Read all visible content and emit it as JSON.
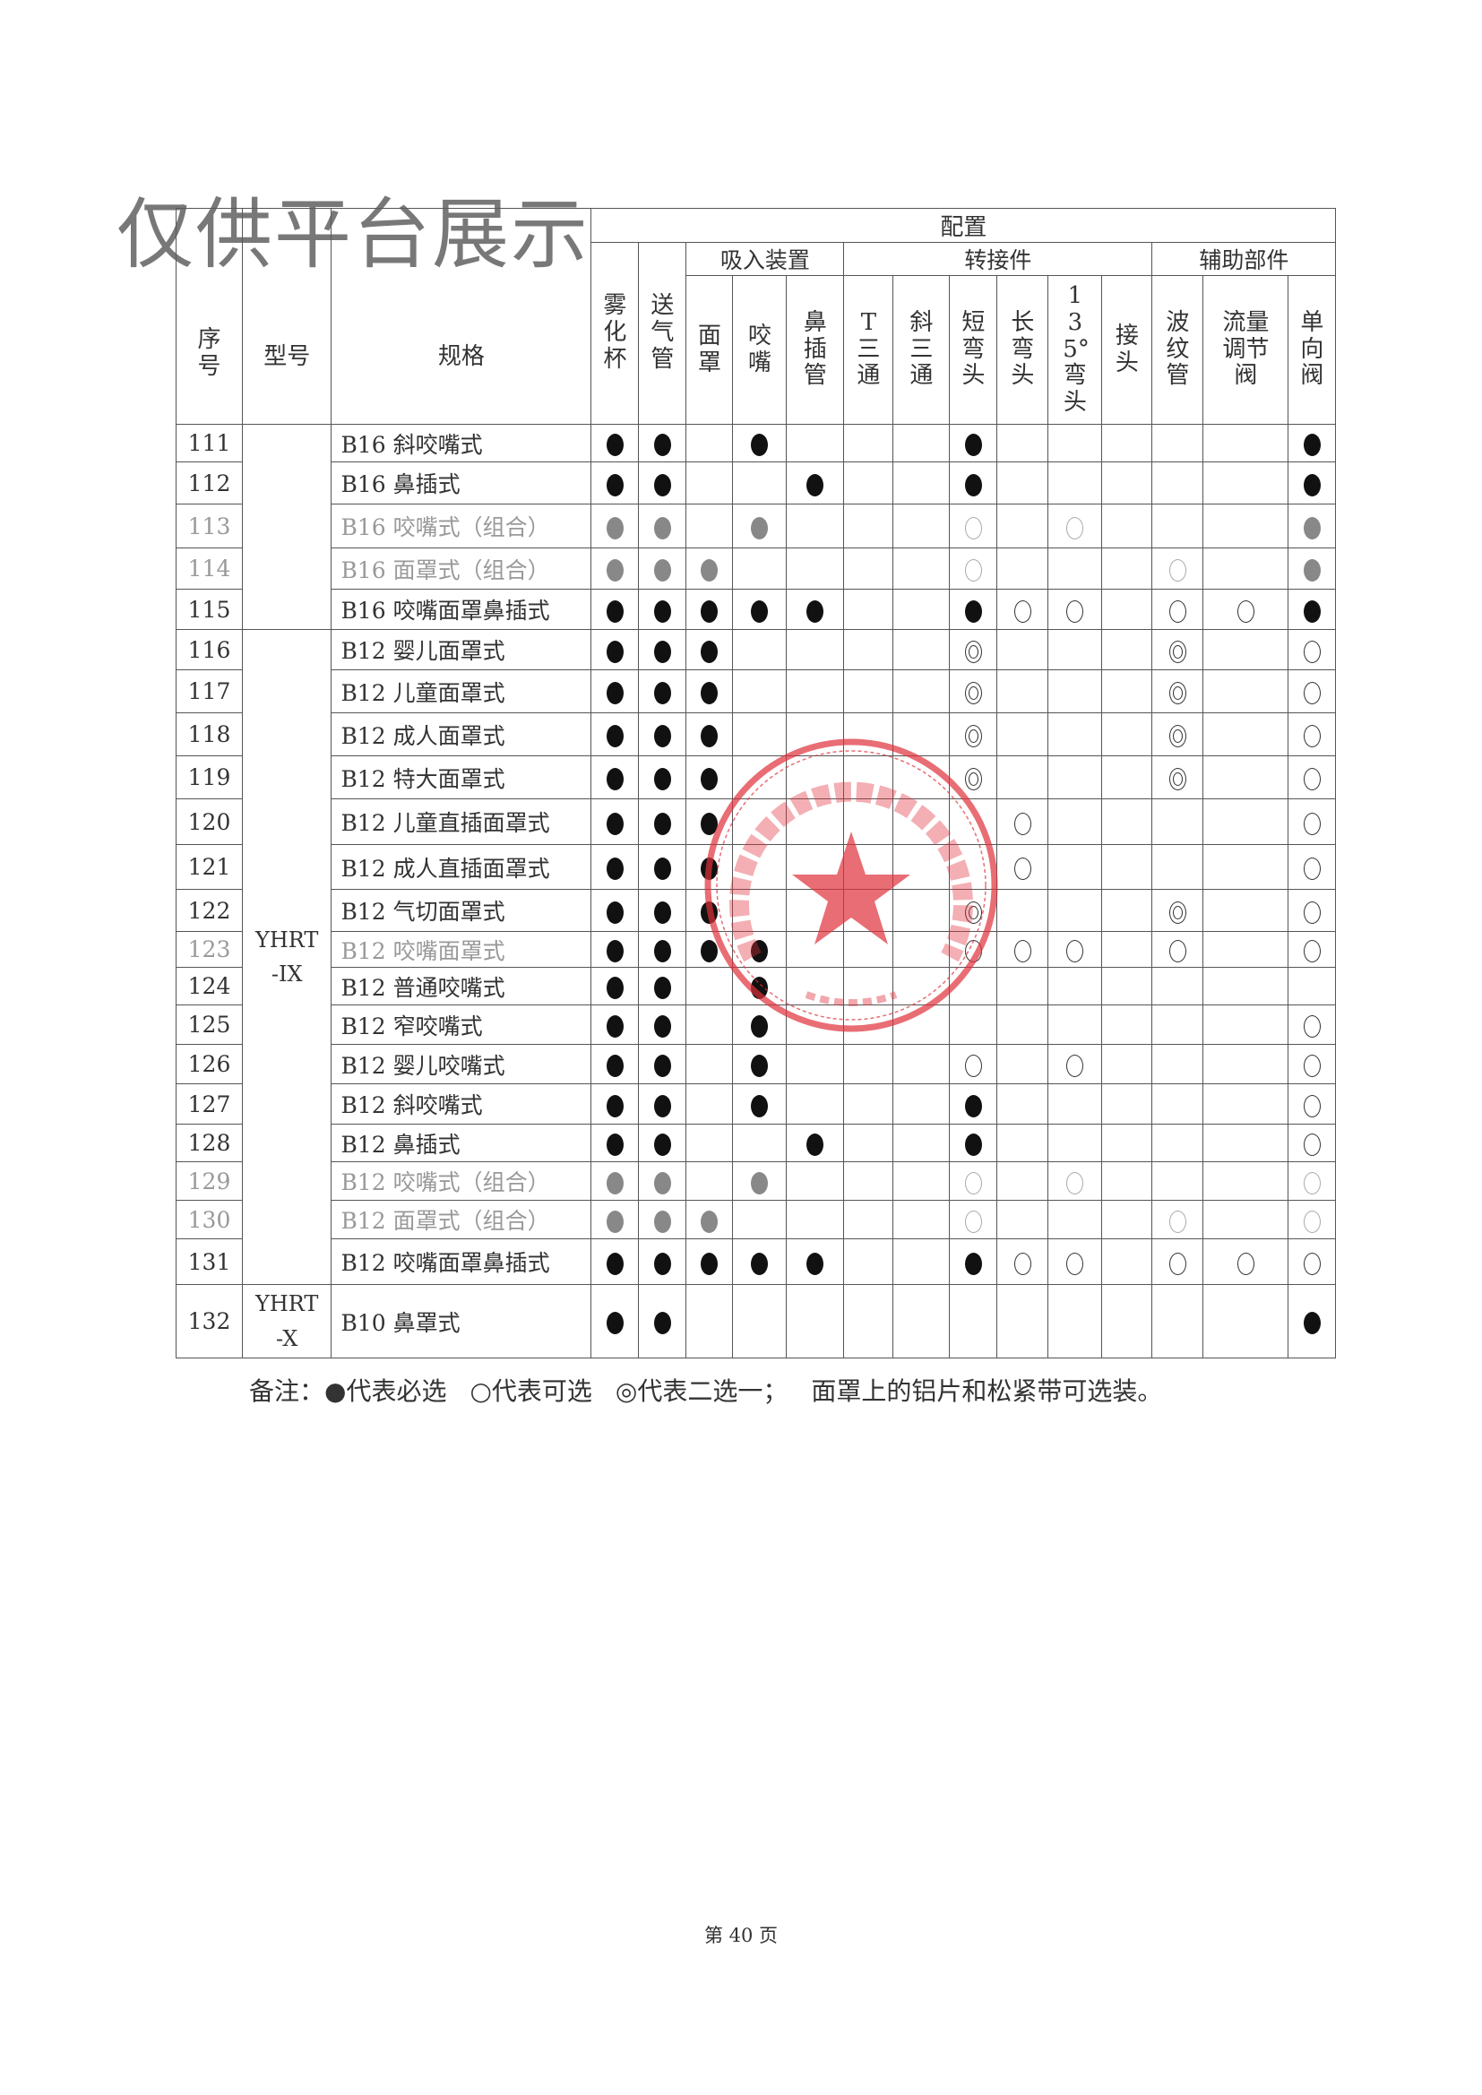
{
  "watermark": "仅供平台展示",
  "header": {
    "seq": "序号",
    "model": "型号",
    "spec": "规格",
    "config": "配置",
    "groups": [
      "吸入装置",
      "转接件",
      "辅助部件"
    ],
    "columns": [
      "雾化杯",
      "送气管",
      "面罩",
      "咬嘴",
      "鼻插管",
      "T三通",
      "斜三通",
      "短弯头",
      "长弯头",
      "135°弯头",
      "接头",
      "波纹管",
      "流量调节阀",
      "单向阀"
    ]
  },
  "legend_symbols": {
    "B": "● 必选",
    "G": "● 必选(灰)",
    "O": "○ 可选",
    "g": "○ 可选(灰)",
    "D": "◎ 二选一"
  },
  "model_groups": [
    {
      "label": "",
      "rows": 5
    },
    {
      "label": "YHRT -IX",
      "rows": 16
    },
    {
      "label": "YHRT -X",
      "rows": 1
    }
  ],
  "rows": [
    {
      "no": "111",
      "spec": "B16 斜咬嘴式",
      "grey": false,
      "cells": "BB_B___B_____B"
    },
    {
      "no": "112",
      "spec": "B16 鼻插式",
      "grey": false,
      "cells": "BB__B__B_____B"
    },
    {
      "no": "113",
      "spec": "B16 咬嘴式（组合）",
      "grey": true,
      "cells": "GG_G___g_g___G"
    },
    {
      "no": "114",
      "spec": "B16 面罩式（组合）",
      "grey": true,
      "cells": "GGG____g___g_G"
    },
    {
      "no": "115",
      "spec": "B16 咬嘴面罩鼻插式",
      "grey": false,
      "cells": "BBBBB__BOO_OOB"
    },
    {
      "no": "116",
      "spec": "B12 婴儿面罩式",
      "grey": false,
      "cells": "BBB____D___D_O"
    },
    {
      "no": "117",
      "spec": "B12 儿童面罩式",
      "grey": false,
      "cells": "BBB____D___D_O"
    },
    {
      "no": "118",
      "spec": "B12 成人面罩式",
      "grey": false,
      "cells": "BBB____D___D_O"
    },
    {
      "no": "119",
      "spec": "B12 特大面罩式",
      "grey": false,
      "cells": "BBB____D___D_O"
    },
    {
      "no": "120",
      "spec": "B12 儿童直插面罩式",
      "grey": false,
      "cells": "BBB_____O____O"
    },
    {
      "no": "121",
      "spec": "B12 成人直插面罩式",
      "grey": false,
      "cells": "BBB_____O____O"
    },
    {
      "no": "122",
      "spec": "B12 气切面罩式",
      "grey": false,
      "cells": "BBB____D___D_O"
    },
    {
      "no": "123",
      "spec": "B12 咬嘴面罩式",
      "grey": true,
      "cells": "BBBB___OOO_O_O"
    },
    {
      "no": "124",
      "spec": "B12 普通咬嘴式",
      "grey": false,
      "cells": "BB_B__________"
    },
    {
      "no": "125",
      "spec": "B12 窄咬嘴式",
      "grey": false,
      "cells": "BB_B_________O"
    },
    {
      "no": "126",
      "spec": "B12 婴儿咬嘴式",
      "grey": false,
      "cells": "BB_B___O_O___O"
    },
    {
      "no": "127",
      "spec": "B12 斜咬嘴式",
      "grey": false,
      "cells": "BB_B___B_____O"
    },
    {
      "no": "128",
      "spec": "B12 鼻插式",
      "grey": false,
      "cells": "BB__B__B_____O"
    },
    {
      "no": "129",
      "spec": "B12 咬嘴式（组合）",
      "grey": true,
      "cells": "GG_G___g_g___g"
    },
    {
      "no": "130",
      "spec": "B12 面罩式（组合）",
      "grey": true,
      "cells": "GGG____g___g_g"
    },
    {
      "no": "131",
      "spec": "B12 咬嘴面罩鼻插式",
      "grey": false,
      "cells": "BBBBB__BOO_OOO"
    },
    {
      "no": "132",
      "spec": "B10 鼻罩式",
      "grey": false,
      "cells": "BB___________B"
    }
  ],
  "note": {
    "prefix": "备注：",
    "required": "●代表必选",
    "optional": "○代表可选",
    "either": "◎代表二选一；",
    "extra": "面罩上的铝片和松紧带可选装。"
  },
  "page": "第 40 页",
  "stamp_color": "#e0303a"
}
